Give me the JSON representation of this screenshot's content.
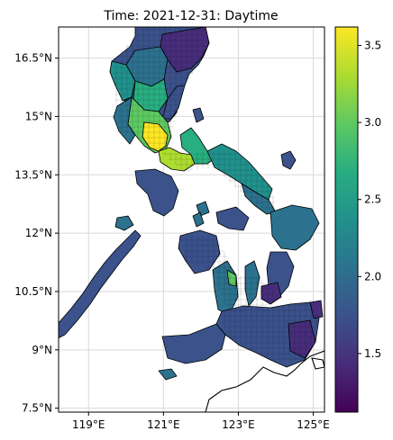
{
  "title": "Time: 2021-12-31: Daytime",
  "map": {
    "lon_range": [
      118.2,
      125.3
    ],
    "lat_range": [
      7.4,
      17.3
    ],
    "x_ticks": [
      {
        "value": 119,
        "label": "119°E"
      },
      {
        "value": 121,
        "label": "121°E"
      },
      {
        "value": 123,
        "label": "123°E"
      },
      {
        "value": 125,
        "label": "125°E"
      }
    ],
    "y_ticks": [
      {
        "value": 16.5,
        "label": "16.5°N"
      },
      {
        "value": 15,
        "label": "15°N"
      },
      {
        "value": 13.5,
        "label": "13.5°N"
      },
      {
        "value": 12,
        "label": "12°N"
      },
      {
        "value": 10.5,
        "label": "10.5°N"
      },
      {
        "value": 9,
        "label": "9°N"
      },
      {
        "value": 7.5,
        "label": "7.5°N"
      }
    ],
    "grid": true,
    "colors": {
      "land_outline": "#000000",
      "ocean": "#ffffff",
      "grid": "#d9d9d9"
    }
  },
  "colorbar": {
    "colormap": "viridis",
    "range": [
      1.12,
      3.62
    ],
    "ticks": [
      {
        "value": 1.5,
        "label": "1.5"
      },
      {
        "value": 2.0,
        "label": "2.0"
      },
      {
        "value": 2.5,
        "label": "2.5"
      },
      {
        "value": 3.0,
        "label": "3.0"
      },
      {
        "value": 3.5,
        "label": "3.5"
      }
    ]
  }
}
